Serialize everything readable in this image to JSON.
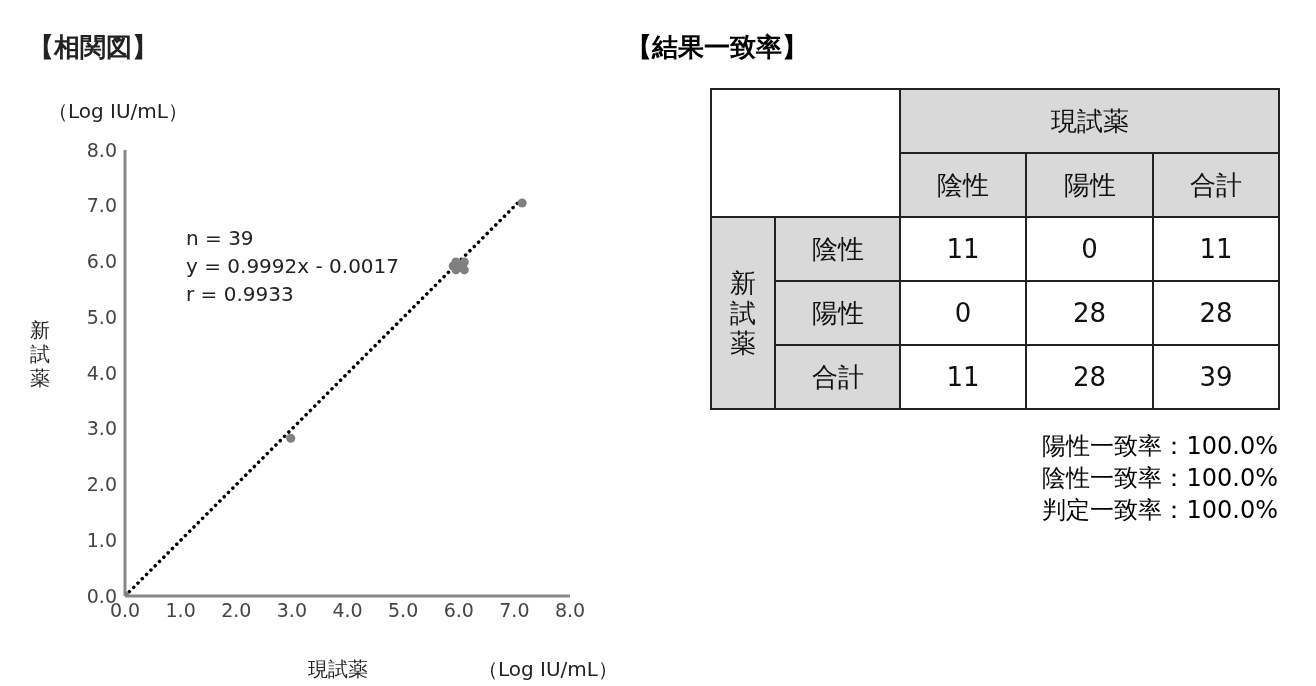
{
  "chart_data": [
    {
      "type": "scatter",
      "title": "【相関図】",
      "xlabel": "現試薬",
      "ylabel": "新試薬",
      "annotations": [
        "（Log IU/mL）",
        "（Log IU/mL）",
        "n = 39",
        "y = 0.9992x - 0.0017",
        "r = 0.9933"
      ],
      "xlim": [
        0,
        8
      ],
      "ylim": [
        0,
        8
      ],
      "xticks": [
        {
          "value": 0,
          "label": "0.0"
        },
        {
          "value": 1,
          "label": "1.0"
        },
        {
          "value": 2,
          "label": "2.0"
        },
        {
          "value": 3,
          "label": "3.0"
        },
        {
          "value": 4,
          "label": "4.0"
        },
        {
          "value": 5,
          "label": "5.0"
        },
        {
          "value": 6,
          "label": "6.0"
        },
        {
          "value": 7,
          "label": "7.0"
        },
        {
          "value": 8,
          "label": "8.0"
        }
      ],
      "yticks": [
        {
          "value": 0,
          "label": "0.0"
        },
        {
          "value": 1,
          "label": "1.0"
        },
        {
          "value": 2,
          "label": "2.0"
        },
        {
          "value": 3,
          "label": "3.0"
        },
        {
          "value": 4,
          "label": "4.0"
        },
        {
          "value": 5,
          "label": "5.0"
        },
        {
          "value": 6,
          "label": "6.0"
        },
        {
          "value": 7,
          "label": "7.0"
        },
        {
          "value": 8,
          "label": "8.0"
        }
      ],
      "series": [
        {
          "type": "scatter",
          "color": "#808080",
          "marker": "circle",
          "x": [
            0,
            2.98,
            5.95,
            6.1,
            5.95,
            6.1,
            5.9,
            6.05,
            7.14
          ],
          "values": [
            0,
            2.83,
            5.99,
            5.85,
            5.85,
            5.99,
            5.92,
            5.92,
            7.05
          ]
        },
        {
          "type": "line",
          "color": "#000000",
          "line_style": "dotted",
          "marker": "none",
          "x": [
            0,
            7.1
          ],
          "values": [
            0,
            7.09
          ]
        }
      ]
    },
    {
      "type": "heatmap",
      "title": "【結果一致率】",
      "xlabel": "現試薬",
      "ylabel": "新試薬",
      "categories": [
        "陰性",
        "陽性",
        "合計"
      ],
      "y_categories": [
        "陰性",
        "陽性",
        "合計"
      ],
      "cells": [
        [
          11,
          0,
          11
        ],
        [
          0,
          28,
          28
        ],
        [
          11,
          28,
          39
        ]
      ],
      "data_labels": true,
      "annotations": [
        "陽性一致率：100.0%",
        "陰性一致率：100.0%",
        "判定一致率：100.0%"
      ]
    }
  ]
}
